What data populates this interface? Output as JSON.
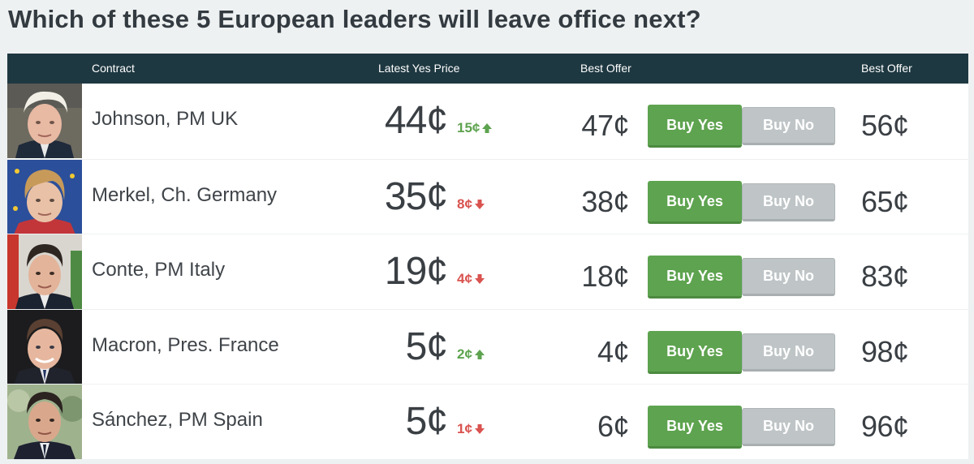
{
  "page": {
    "title": "Which of these 5 European leaders will leave office next?"
  },
  "table": {
    "headers": {
      "contract": "Contract",
      "latest_yes_price": "Latest Yes Price",
      "best_offer_yes": "Best Offer",
      "best_offer_no": "Best Offer"
    },
    "rows": [
      {
        "contract": "Johnson, PM UK",
        "latest_price": "44¢",
        "change": "15¢",
        "change_direction": "up",
        "best_offer_yes": "47¢",
        "buy_yes_label": "Buy Yes",
        "buy_no_label": "Buy No",
        "best_offer_no": "56¢"
      },
      {
        "contract": "Merkel, Ch. Germany",
        "latest_price": "35¢",
        "change": "8¢",
        "change_direction": "down",
        "best_offer_yes": "38¢",
        "buy_yes_label": "Buy Yes",
        "buy_no_label": "Buy No",
        "best_offer_no": "65¢"
      },
      {
        "contract": "Conte, PM Italy",
        "latest_price": "19¢",
        "change": "4¢",
        "change_direction": "down",
        "best_offer_yes": "18¢",
        "buy_yes_label": "Buy Yes",
        "buy_no_label": "Buy No",
        "best_offer_no": "83¢"
      },
      {
        "contract": "Macron, Pres. France",
        "latest_price": "5¢",
        "change": "2¢",
        "change_direction": "up",
        "best_offer_yes": "4¢",
        "buy_yes_label": "Buy Yes",
        "buy_no_label": "Buy No",
        "best_offer_no": "98¢"
      },
      {
        "contract": "Sánchez, PM Spain",
        "latest_price": "5¢",
        "change": "1¢",
        "change_direction": "down",
        "best_offer_yes": "6¢",
        "buy_yes_label": "Buy Yes",
        "buy_no_label": "Buy No",
        "best_offer_no": "96¢"
      }
    ]
  },
  "colors": {
    "header_bg": "#1e3841",
    "buy_yes": "#5ea34f",
    "buy_no": "#bfc5c7",
    "change_up": "#5ea34f",
    "change_down": "#d9534f"
  },
  "icons": {
    "up": "arrow-up-icon",
    "down": "arrow-down-icon"
  }
}
